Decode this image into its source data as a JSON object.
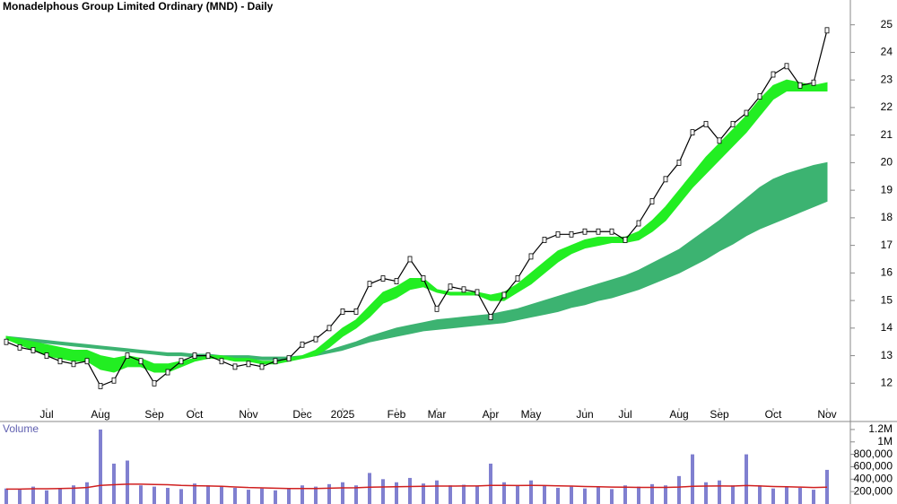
{
  "chart_data": {
    "type": "stock",
    "title": "Monadelphous Group Limited Ordinary (MND) - Daily",
    "categories": [
      null,
      null,
      null,
      "Jul",
      null,
      null,
      null,
      "Aug",
      null,
      null,
      null,
      "Sep",
      null,
      null,
      "Oct",
      null,
      null,
      null,
      "Nov",
      null,
      null,
      null,
      "Dec",
      null,
      null,
      "2025",
      null,
      null,
      null,
      "Feb",
      null,
      null,
      "Mar",
      null,
      null,
      null,
      "Apr",
      null,
      null,
      "May",
      null,
      null,
      null,
      "Jun",
      null,
      null,
      "Jul",
      null,
      null,
      null,
      "Aug",
      null,
      null,
      "Sep",
      null,
      null,
      null,
      "Oct",
      null,
      null,
      null,
      "Nov"
    ],
    "close": {
      "color": "#000000",
      "values": [
        13.5,
        13.3,
        13.2,
        13.0,
        12.8,
        12.7,
        12.8,
        11.9,
        12.1,
        13.0,
        12.8,
        12.0,
        12.4,
        12.8,
        13.0,
        13.0,
        12.8,
        12.6,
        12.7,
        12.6,
        12.8,
        12.9,
        13.4,
        13.6,
        14.0,
        14.6,
        14.6,
        15.6,
        15.8,
        15.7,
        16.5,
        15.8,
        14.7,
        15.5,
        15.4,
        15.3,
        14.4,
        15.2,
        15.8,
        16.6,
        17.2,
        17.4,
        17.4,
        17.5,
        17.5,
        17.5,
        17.2,
        17.8,
        18.6,
        19.4,
        20.0,
        21.1,
        21.4,
        20.8,
        21.4,
        21.8,
        22.4,
        23.2,
        23.5,
        22.8,
        22.9,
        24.8
      ]
    },
    "bands": [
      {
        "color": "#22ee22",
        "upper": [
          13.7,
          13.6,
          13.5,
          13.4,
          13.3,
          13.2,
          13.2,
          13.0,
          12.9,
          13.0,
          12.9,
          12.7,
          12.7,
          12.8,
          12.9,
          13.0,
          13.0,
          12.9,
          12.9,
          12.8,
          12.8,
          12.9,
          13.0,
          13.2,
          13.6,
          14.0,
          14.3,
          14.8,
          15.3,
          15.5,
          15.8,
          15.8,
          15.4,
          15.3,
          15.3,
          15.3,
          15.2,
          15.3,
          15.6,
          16.0,
          16.4,
          16.8,
          17.0,
          17.2,
          17.3,
          17.3,
          17.3,
          17.5,
          17.9,
          18.4,
          19.0,
          19.6,
          20.2,
          20.7,
          21.2,
          21.7,
          22.3,
          22.8,
          23.0,
          22.9,
          22.8,
          22.9
        ],
        "lower": [
          13.6,
          13.4,
          13.2,
          13.0,
          12.9,
          12.8,
          12.8,
          12.5,
          12.4,
          12.6,
          12.6,
          12.4,
          12.4,
          12.6,
          12.8,
          12.9,
          12.9,
          12.8,
          12.8,
          12.7,
          12.7,
          12.8,
          12.9,
          13.0,
          13.3,
          13.7,
          14.0,
          14.4,
          14.9,
          15.1,
          15.4,
          15.5,
          15.3,
          15.2,
          15.2,
          15.2,
          15.0,
          15.0,
          15.3,
          15.6,
          16.0,
          16.4,
          16.7,
          16.9,
          17.0,
          17.1,
          17.1,
          17.2,
          17.5,
          17.9,
          18.5,
          19.1,
          19.6,
          20.1,
          20.6,
          21.1,
          21.7,
          22.3,
          22.6,
          22.6,
          22.6,
          22.6
        ]
      },
      {
        "color": "#3cb371",
        "upper": [
          13.7,
          13.65,
          13.6,
          13.55,
          13.5,
          13.45,
          13.4,
          13.35,
          13.3,
          13.25,
          13.2,
          13.15,
          13.1,
          13.1,
          13.05,
          13.05,
          13.0,
          13.0,
          13.0,
          12.95,
          12.95,
          12.95,
          13.0,
          13.1,
          13.2,
          13.35,
          13.5,
          13.7,
          13.85,
          14.0,
          14.1,
          14.2,
          14.3,
          14.35,
          14.4,
          14.45,
          14.5,
          14.6,
          14.7,
          14.85,
          15.0,
          15.15,
          15.3,
          15.45,
          15.6,
          15.75,
          15.9,
          16.1,
          16.35,
          16.6,
          16.85,
          17.2,
          17.55,
          17.9,
          18.3,
          18.7,
          19.1,
          19.4,
          19.6,
          19.75,
          19.9,
          20.0
        ],
        "lower": [
          13.6,
          13.55,
          13.5,
          13.45,
          13.4,
          13.35,
          13.3,
          13.25,
          13.2,
          13.15,
          13.1,
          13.05,
          13.0,
          13.0,
          12.95,
          12.95,
          12.9,
          12.9,
          12.9,
          12.85,
          12.85,
          12.9,
          12.95,
          13.0,
          13.1,
          13.2,
          13.35,
          13.5,
          13.6,
          13.7,
          13.8,
          13.9,
          13.95,
          14.0,
          14.05,
          14.1,
          14.15,
          14.2,
          14.3,
          14.4,
          14.5,
          14.6,
          14.75,
          14.85,
          15.0,
          15.1,
          15.25,
          15.4,
          15.6,
          15.8,
          16.0,
          16.25,
          16.5,
          16.8,
          17.05,
          17.35,
          17.6,
          17.8,
          18.0,
          18.2,
          18.4,
          18.6
        ]
      }
    ],
    "ylim": [
      11.1,
      25.9
    ],
    "yticks": [
      12,
      13,
      14,
      15,
      16,
      17,
      18,
      19,
      20,
      21,
      22,
      23,
      24,
      25
    ],
    "volume": {
      "label": "Volume",
      "color": "#8080d0",
      "average_color": "#d02020",
      "values": [
        250000,
        230000,
        280000,
        220000,
        260000,
        300000,
        350000,
        1200000,
        650000,
        700000,
        300000,
        280000,
        260000,
        240000,
        330000,
        300000,
        280000,
        260000,
        230000,
        250000,
        220000,
        240000,
        300000,
        280000,
        320000,
        350000,
        300000,
        500000,
        400000,
        350000,
        420000,
        330000,
        380000,
        300000,
        310000,
        290000,
        650000,
        350000,
        300000,
        380000,
        300000,
        260000,
        280000,
        250000,
        270000,
        240000,
        300000,
        280000,
        320000,
        300000,
        450000,
        800000,
        350000,
        380000,
        300000,
        800000,
        300000,
        250000,
        280000,
        260000,
        230000,
        550000
      ],
      "average": [
        240000,
        240000,
        245000,
        245000,
        250000,
        255000,
        265000,
        300000,
        310000,
        320000,
        320000,
        315000,
        310000,
        300000,
        295000,
        290000,
        285000,
        275000,
        265000,
        260000,
        255000,
        250000,
        250000,
        250000,
        255000,
        260000,
        262000,
        270000,
        275000,
        278000,
        282000,
        285000,
        288000,
        288000,
        290000,
        290000,
        300000,
        300000,
        298000,
        300000,
        298000,
        292000,
        288000,
        282000,
        278000,
        272000,
        270000,
        268000,
        268000,
        268000,
        272000,
        285000,
        288000,
        290000,
        288000,
        298000,
        290000,
        282000,
        278000,
        272000,
        265000,
        270000
      ],
      "ylim": [
        0,
        1300000
      ],
      "yticks": [
        {
          "value": 200000,
          "label": "200,000"
        },
        {
          "value": 400000,
          "label": "400,000"
        },
        {
          "value": 600000,
          "label": "600,000"
        },
        {
          "value": 800000,
          "label": "800,000"
        },
        {
          "value": 1000000,
          "label": "1M"
        },
        {
          "value": 1200000,
          "label": "1.2M"
        }
      ]
    }
  }
}
